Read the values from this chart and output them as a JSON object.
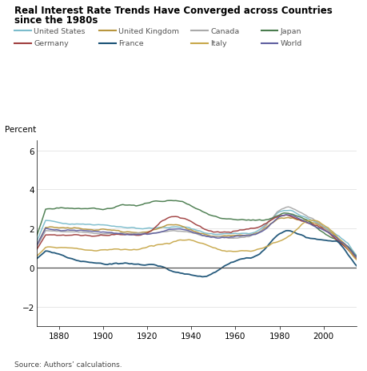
{
  "title1": "Real Interest Rate Trends Have Converged across Countries",
  "title2": "since the 1980s",
  "ylabel": "Percent",
  "source": "Source: Authors’ calculations.",
  "xlim": [
    1870,
    2015
  ],
  "ylim": [
    -3,
    6.5
  ],
  "yticks": [
    -2,
    0,
    2,
    4,
    6
  ],
  "xticks": [
    1880,
    1900,
    1920,
    1940,
    1960,
    1980,
    2000
  ],
  "series": {
    "United States": {
      "color": "#7bbccc",
      "lw": 1.1
    },
    "United Kingdom": {
      "color": "#b8963e",
      "lw": 1.1
    },
    "Canada": {
      "color": "#aaaaaa",
      "lw": 1.1
    },
    "Japan": {
      "color": "#4a7c4e",
      "lw": 1.1
    },
    "Germany": {
      "color": "#a04040",
      "lw": 1.1
    },
    "France": {
      "color": "#1a5276",
      "lw": 1.3
    },
    "Italy": {
      "color": "#c8a84b",
      "lw": 1.1
    },
    "World": {
      "color": "#6060a0",
      "lw": 1.1
    }
  },
  "legend_row1": [
    "United States",
    "United Kingdom",
    "Canada",
    "Japan"
  ],
  "legend_row2": [
    "Germany",
    "France",
    "Italy",
    "World"
  ]
}
